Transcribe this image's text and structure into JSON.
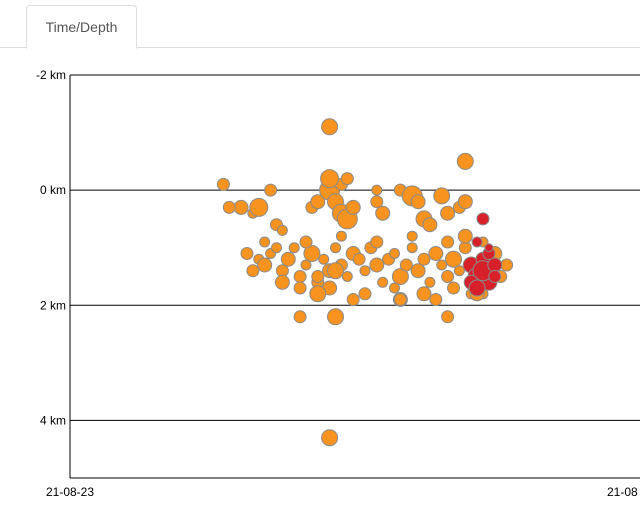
{
  "tabs": [
    {
      "label": "Time/Depth",
      "active": true
    }
  ],
  "colors": {
    "older": "#f7931e",
    "recent": "#d8202a",
    "stroke": "#8a8a8a",
    "gridline": "#000000"
  },
  "chart_data": {
    "type": "scatter",
    "title": "",
    "xlabel": "",
    "ylabel": "",
    "x_axis": {
      "ticks": [
        "21-08-23",
        "21-08"
      ],
      "range": [
        0,
        1
      ]
    },
    "y_axis": {
      "reversed": true,
      "range": [
        -2,
        5
      ],
      "ticks": [
        -2,
        0,
        2,
        4
      ],
      "tick_labels": [
        "-2 km",
        "0 km",
        "2 km",
        "4 km"
      ]
    },
    "grid": "horizontal",
    "series": [
      {
        "color": "older",
        "points": [
          [
            0.3,
            1.1,
            6
          ],
          [
            0.32,
            1.2,
            5
          ],
          [
            0.33,
            1.3,
            7
          ],
          [
            0.34,
            1.1,
            5
          ],
          [
            0.36,
            1.4,
            6
          ],
          [
            0.37,
            1.2,
            7
          ],
          [
            0.38,
            1.0,
            5
          ],
          [
            0.39,
            1.5,
            6
          ],
          [
            0.4,
            1.3,
            5
          ],
          [
            0.41,
            1.1,
            8
          ],
          [
            0.42,
            1.6,
            6
          ],
          [
            0.43,
            1.2,
            5
          ],
          [
            0.44,
            1.4,
            7
          ],
          [
            0.45,
            1.0,
            5
          ],
          [
            0.46,
            1.3,
            6
          ],
          [
            0.47,
            1.5,
            5
          ],
          [
            0.48,
            1.1,
            7
          ],
          [
            0.49,
            1.2,
            6
          ],
          [
            0.5,
            1.4,
            5
          ],
          [
            0.51,
            1.0,
            6
          ],
          [
            0.52,
            1.3,
            7
          ],
          [
            0.53,
            1.6,
            5
          ],
          [
            0.54,
            1.2,
            6
          ],
          [
            0.55,
            1.1,
            5
          ],
          [
            0.56,
            1.5,
            8
          ],
          [
            0.57,
            1.3,
            6
          ],
          [
            0.58,
            1.0,
            5
          ],
          [
            0.59,
            1.4,
            7
          ],
          [
            0.6,
            1.2,
            6
          ],
          [
            0.61,
            1.6,
            5
          ],
          [
            0.62,
            1.1,
            7
          ],
          [
            0.63,
            1.3,
            5
          ],
          [
            0.64,
            1.5,
            6
          ],
          [
            0.65,
            1.2,
            8
          ],
          [
            0.66,
            1.4,
            5
          ],
          [
            0.67,
            1.0,
            6
          ],
          [
            0.68,
            1.3,
            7
          ],
          [
            0.69,
            1.6,
            5
          ],
          [
            0.7,
            1.2,
            6
          ],
          [
            0.71,
            1.4,
            5
          ],
          [
            0.72,
            1.1,
            7
          ],
          [
            0.73,
            1.5,
            6
          ],
          [
            0.31,
            1.4,
            6
          ],
          [
            0.35,
            1.0,
            5
          ],
          [
            0.39,
            1.7,
            6
          ],
          [
            0.44,
            1.7,
            7
          ],
          [
            0.5,
            1.8,
            6
          ],
          [
            0.55,
            1.7,
            5
          ],
          [
            0.6,
            1.8,
            7
          ],
          [
            0.65,
            1.7,
            6
          ],
          [
            0.7,
            1.8,
            5
          ],
          [
            0.74,
            1.3,
            6
          ],
          [
            0.33,
            0.9,
            5
          ],
          [
            0.4,
            0.9,
            6
          ],
          [
            0.46,
            0.8,
            5
          ],
          [
            0.52,
            0.9,
            6
          ],
          [
            0.58,
            0.8,
            5
          ],
          [
            0.64,
            0.9,
            6
          ],
          [
            0.7,
            0.9,
            5
          ],
          [
            0.48,
            1.9,
            6
          ],
          [
            0.56,
            1.9,
            7
          ],
          [
            0.62,
            1.9,
            6
          ],
          [
            0.68,
            1.8,
            5
          ],
          [
            0.36,
            1.6,
            7
          ],
          [
            0.42,
            1.5,
            6
          ],
          [
            0.29,
            0.3,
            7
          ],
          [
            0.31,
            0.4,
            5
          ],
          [
            0.32,
            0.3,
            9
          ],
          [
            0.35,
            0.6,
            6
          ],
          [
            0.36,
            0.7,
            5
          ],
          [
            0.41,
            0.3,
            6
          ],
          [
            0.42,
            0.2,
            7
          ],
          [
            0.44,
            0.0,
            10
          ],
          [
            0.45,
            0.2,
            8
          ],
          [
            0.46,
            0.4,
            9
          ],
          [
            0.47,
            0.5,
            10
          ],
          [
            0.48,
            0.3,
            7
          ],
          [
            0.52,
            0.2,
            6
          ],
          [
            0.53,
            0.4,
            7
          ],
          [
            0.56,
            0.0,
            6
          ],
          [
            0.58,
            0.1,
            10
          ],
          [
            0.59,
            0.2,
            7
          ],
          [
            0.6,
            0.5,
            8
          ],
          [
            0.61,
            0.6,
            7
          ],
          [
            0.63,
            0.1,
            8
          ],
          [
            0.64,
            0.4,
            7
          ],
          [
            0.66,
            0.3,
            6
          ],
          [
            0.67,
            0.2,
            7
          ],
          [
            0.44,
            -0.2,
            7
          ],
          [
            0.46,
            -0.1,
            6
          ],
          [
            0.52,
            0.0,
            5
          ],
          [
            0.34,
            0.0,
            6
          ],
          [
            0.44,
            -1.1,
            8
          ],
          [
            0.26,
            -0.1,
            6
          ],
          [
            0.27,
            0.3,
            6
          ],
          [
            0.44,
            -0.2,
            9
          ],
          [
            0.47,
            -0.2,
            6
          ],
          [
            0.67,
            -0.5,
            8
          ],
          [
            0.67,
            0.8,
            7
          ],
          [
            0.45,
            2.2,
            8
          ],
          [
            0.56,
            1.9,
            6
          ],
          [
            0.64,
            2.2,
            6
          ],
          [
            0.39,
            2.2,
            6
          ],
          [
            0.44,
            4.3,
            8
          ],
          [
            0.45,
            1.4,
            8
          ],
          [
            0.42,
            1.8,
            8
          ],
          [
            0.69,
            1.8,
            7
          ]
        ]
      },
      {
        "color": "recent",
        "points": [
          [
            0.68,
            1.3,
            8
          ],
          [
            0.69,
            1.5,
            9
          ],
          [
            0.7,
            1.2,
            7
          ],
          [
            0.71,
            1.6,
            8
          ],
          [
            0.7,
            1.4,
            10
          ],
          [
            0.72,
            1.3,
            7
          ],
          [
            0.71,
            1.1,
            6
          ],
          [
            0.69,
            0.9,
            5
          ],
          [
            0.71,
            1.0,
            4
          ],
          [
            0.72,
            1.5,
            6
          ],
          [
            0.7,
            0.5,
            6
          ],
          [
            0.68,
            1.6,
            7
          ],
          [
            0.69,
            1.7,
            8
          ]
        ]
      }
    ]
  }
}
